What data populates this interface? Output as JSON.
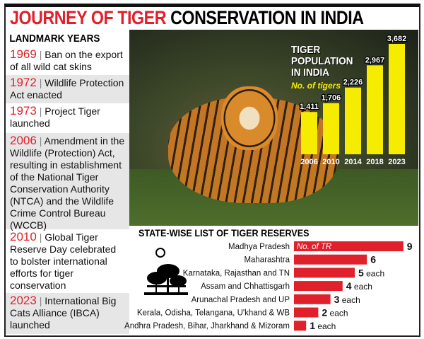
{
  "title": {
    "part1": "JOURNEY OF TIGER",
    "part2": "CONSERVATION IN INDIA"
  },
  "landmarks": {
    "heading": "LANDMARK YEARS",
    "events": [
      {
        "year": "1969",
        "text": "Ban on the export of all wild cat skins"
      },
      {
        "year": "1972",
        "text": "Wildlife Protection Act enacted"
      },
      {
        "year": "1973",
        "text": "Project Tiger launched"
      },
      {
        "year": "2006",
        "text": "Amendment in the Wildlife (Protection) Act, resulting in establishment of the National Tiger Conservation Authority (NTCA) and the Wildlife Crime Control Bureau (WCCB)"
      },
      {
        "year": "2010",
        "text": "Global Tiger Reserve Day celebrated to bolster international efforts for tiger conservation"
      },
      {
        "year": "2023",
        "text": "International Big Cats Alliance (IBCA) launched"
      }
    ]
  },
  "colors": {
    "red": "#e0202a",
    "yellow": "#f5ec00"
  },
  "chart_data": [
    {
      "type": "bar",
      "title": "TIGER POPULATION IN INDIA",
      "ylabel": "No. of tigers",
      "categories": [
        "2006",
        "2010",
        "2014",
        "2018",
        "2023"
      ],
      "values": [
        1411,
        1706,
        2226,
        2967,
        3682
      ],
      "value_labels": [
        "1,411",
        "1,706",
        "2,226",
        "2,967",
        "3,682"
      ],
      "color": "#f5ec00"
    },
    {
      "type": "bar",
      "orientation": "horizontal",
      "title": "STATE-WISE LIST OF TIGER RESERVES",
      "legend": "No. of TR",
      "categories": [
        "Madhya Pradesh",
        "Maharashtra",
        "Karnataka, Rajasthan and TN",
        "Assam and Chhattisgarh",
        "Arunachal Pradesh and UP",
        "Kerala, Odisha, Telangana, U'khand & WB",
        "Andhra Pradesh, Bihar, Jharkhand & Mizoram"
      ],
      "values": [
        9,
        6,
        5,
        4,
        3,
        2,
        1
      ],
      "suffixes": [
        "",
        "",
        "each",
        "each",
        "each",
        "each",
        "each"
      ],
      "color": "#e0202a"
    }
  ]
}
